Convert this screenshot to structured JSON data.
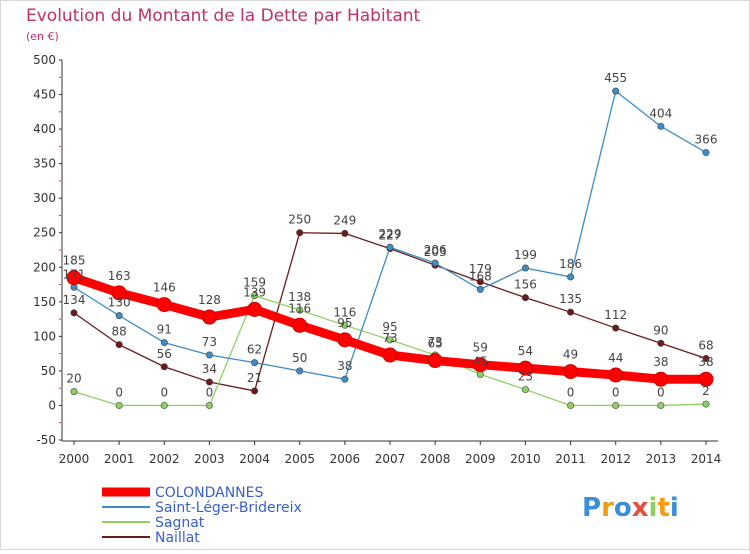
{
  "chart_data": {
    "type": "line",
    "title": "Evolution du Montant de la Dette par Habitant",
    "subtitle": "(en €)",
    "x": [
      "2000",
      "2001",
      "2002",
      "2003",
      "2004",
      "2005",
      "2006",
      "2007",
      "2008",
      "2009",
      "2010",
      "2011",
      "2012",
      "2013",
      "2014"
    ],
    "ylim": [
      -50,
      500
    ],
    "yticks": [
      -50,
      0,
      50,
      100,
      150,
      200,
      250,
      300,
      350,
      400,
      450,
      500
    ],
    "grid": false,
    "legend_position": "bottom-left",
    "series": [
      {
        "name": "COLONDANNES",
        "color": "#ff0000",
        "label_color": "#6b6b6b",
        "values": [
          185,
          163,
          146,
          128,
          139,
          116,
          95,
          73,
          65,
          59,
          54,
          49,
          44,
          38,
          38
        ]
      },
      {
        "name": "Saint-Léger-Bridereix",
        "color": "#3d8bc9",
        "label_color": "#6b6b6b",
        "values": [
          171,
          130,
          91,
          73,
          62,
          50,
          38,
          229,
          206,
          168,
          199,
          186,
          455,
          404,
          366
        ]
      },
      {
        "name": "Sagnat",
        "color": "#8fd160",
        "label_color": "#6b6b6b",
        "values": [
          20,
          0,
          0,
          0,
          159,
          138,
          116,
          95,
          73,
          45,
          23,
          0,
          0,
          0,
          2
        ]
      },
      {
        "name": "Naillat",
        "color": "#6b1a1a",
        "label_color": "#6b6b6b",
        "values": [
          134,
          88,
          56,
          34,
          21,
          250,
          249,
          227,
          203,
          179,
          156,
          135,
          112,
          90,
          68
        ]
      }
    ],
    "point_labels": [
      [
        "185",
        "163",
        "146",
        "128",
        "139",
        "116",
        "95",
        "73",
        "65",
        "59",
        "54",
        "49",
        "44",
        "38",
        "38"
      ],
      [
        "171",
        "130",
        "91",
        "73",
        "62",
        "50",
        "38",
        "229",
        "206",
        "168",
        "199",
        "186",
        "455",
        "404",
        "366"
      ],
      [
        "20",
        "0",
        "0",
        "0",
        "159",
        "138",
        "116",
        "95",
        "73",
        "45",
        "23",
        "0",
        "0",
        "0",
        "2"
      ],
      [
        "134",
        "88",
        "56",
        "34",
        "21",
        "250",
        "249",
        "227",
        "203",
        "179",
        "156",
        "135",
        "112",
        "90",
        "68"
      ]
    ]
  },
  "logo": {
    "text": "Proxiti",
    "letters": [
      "P",
      "r",
      "o",
      "x",
      "i",
      "t",
      "i"
    ],
    "colors": [
      "#3a8fd8",
      "#f39c12",
      "#3a8fd8",
      "#e74c3c",
      "#8fd160",
      "#f39c12",
      "#3a8fd8"
    ]
  }
}
